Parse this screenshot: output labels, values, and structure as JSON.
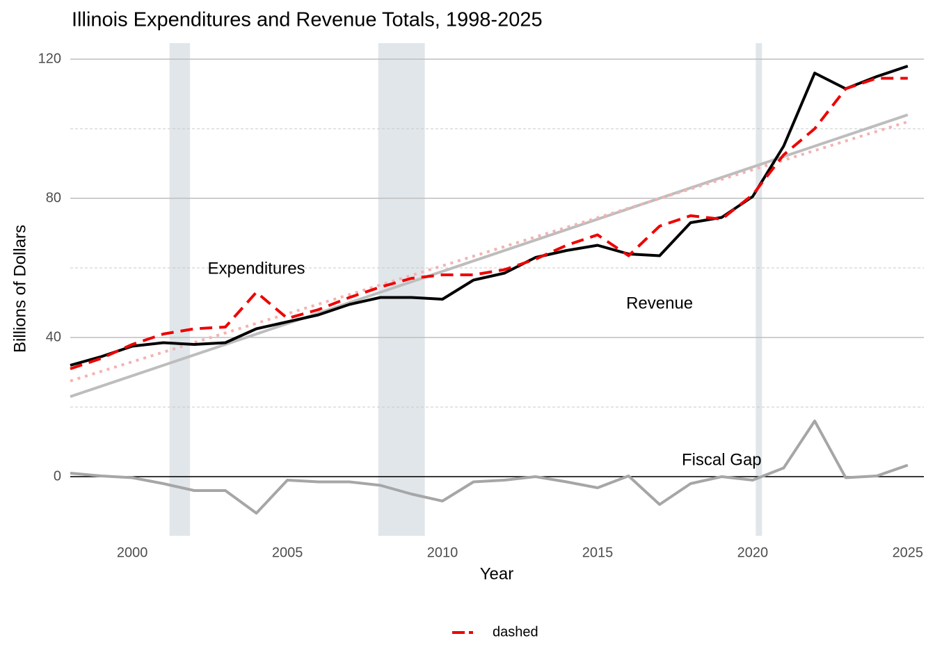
{
  "chart_data": {
    "type": "line",
    "title": "Illinois Expenditures and Revenue Totals, 1998-2025",
    "x_label": "Year",
    "y_label": "Billions of Dollars",
    "x": [
      1998,
      1999,
      2000,
      2001,
      2002,
      2003,
      2004,
      2005,
      2006,
      2007,
      2008,
      2009,
      2010,
      2011,
      2012,
      2013,
      2014,
      2015,
      2016,
      2017,
      2018,
      2019,
      2020,
      2021,
      2022,
      2023,
      2024,
      2025
    ],
    "series": [
      {
        "color": "#000000",
        "linetype": "solid",
        "values": [
          32,
          34.5,
          37.5,
          38.5,
          38,
          38.5,
          42.5,
          44.5,
          46.5,
          49.5,
          51.5,
          51.5,
          51,
          56.5,
          58.5,
          63,
          65,
          66.5,
          64,
          63.5,
          73,
          74.5,
          80.5,
          95,
          116,
          111.5,
          115,
          118
        ]
      },
      {
        "name": "dashed",
        "color": "#ee0000",
        "linetype": "dashed",
        "values": [
          31,
          34,
          38,
          41,
          42.5,
          43,
          53,
          45.5,
          48,
          51.5,
          54.5,
          57,
          58,
          58,
          59.5,
          62.5,
          66.5,
          69.5,
          63.5,
          72,
          75,
          74,
          81,
          92.5,
          100,
          111.5,
          114.5,
          114.5
        ]
      },
      {
        "color": "#a6a6a6",
        "linetype": "solid",
        "values": [
          1,
          0.2,
          -0.3,
          -2,
          -4,
          -4,
          -10.5,
          -1,
          -1.5,
          -1.5,
          -2.5,
          -5,
          -7,
          -1.5,
          -1,
          0,
          -1.5,
          -3.2,
          0.2,
          -8,
          -2,
          0,
          -1,
          2.5,
          16,
          -0.3,
          0.2,
          3.3
        ]
      }
    ],
    "trend_lines": [
      {
        "color": "#bdbdbd",
        "linetype": "solid",
        "x": [
          1998,
          2025
        ],
        "values": [
          23,
          104
        ]
      },
      {
        "color": "#f2b3b3",
        "linetype": "dotted",
        "x": [
          1998,
          2025
        ],
        "values": [
          27.5,
          102
        ]
      }
    ],
    "shaded_regions": {
      "color": "#e1e6ea",
      "ranges": [
        [
          2001.2,
          2001.86
        ],
        [
          2007.93,
          2009.43
        ],
        [
          2020.1,
          2020.3
        ]
      ]
    },
    "annotations": [
      {
        "text": "Expenditures",
        "x": 2004,
        "y": 59.6
      },
      {
        "text": "Revenue",
        "x": 2017,
        "y": 49.6
      },
      {
        "text": "Fiscal Gap",
        "x": 2019,
        "y": 4.6
      }
    ],
    "xlim": [
      1998,
      2025.52
    ],
    "xticks": [
      2000,
      2005,
      2010,
      2015,
      2020,
      2025
    ],
    "ylim": [
      -17,
      124.6
    ],
    "yticks": [
      0,
      40,
      80,
      120
    ],
    "yminor": [
      20,
      60,
      100
    ],
    "grid": true,
    "zero_line": true,
    "legend_position": "bottom"
  }
}
